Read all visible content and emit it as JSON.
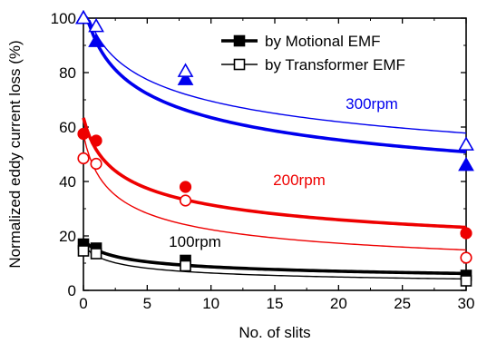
{
  "chart_data": {
    "type": "scatter",
    "xlabel": "No. of slits",
    "ylabel": "Normalized eddy current loss (%)",
    "xlim": [
      0,
      30
    ],
    "ylim": [
      0,
      100
    ],
    "x_ticks": [
      0,
      5,
      10,
      15,
      20,
      25,
      30
    ],
    "y_ticks": [
      0,
      20,
      40,
      60,
      80,
      100
    ],
    "grid": false,
    "legend_position": "top-right",
    "legend": [
      {
        "label": "by Motional EMF",
        "marker": "filled",
        "line": "thick"
      },
      {
        "label": "by Transformer EMF",
        "marker": "open",
        "line": "thin"
      }
    ],
    "annotations": [
      {
        "text": "300rpm",
        "color": "#0000ee",
        "group": 0
      },
      {
        "text": "200rpm",
        "color": "#ee0000",
        "group": 1
      },
      {
        "text": "100rpm",
        "color": "#000000",
        "group": 2
      }
    ],
    "groups": [
      {
        "color": "#0000ee",
        "marker": "triangle",
        "series": [
          {
            "name": "by Motional EMF",
            "filled": true,
            "x": [
              0,
              1,
              8,
              30
            ],
            "y": [
              100,
              91.5,
              77.5,
              46
            ]
          },
          {
            "name": "by Transformer EMF",
            "filled": false,
            "x": [
              0,
              1,
              8,
              30
            ],
            "y": [
              100,
              97,
              80.5,
              53.5
            ]
          }
        ]
      },
      {
        "color": "#ee0000",
        "marker": "circle",
        "series": [
          {
            "name": "by Motional EMF",
            "filled": true,
            "x": [
              0,
              1,
              8,
              30
            ],
            "y": [
              57.5,
              55,
              38,
              21
            ]
          },
          {
            "name": "by Transformer EMF",
            "filled": false,
            "x": [
              0,
              1,
              8,
              30
            ],
            "y": [
              48.5,
              46.5,
              33,
              12
            ]
          }
        ]
      },
      {
        "color": "#000000",
        "marker": "square",
        "series": [
          {
            "name": "by Motional EMF",
            "filled": true,
            "x": [
              0,
              1,
              8,
              30
            ],
            "y": [
              17,
              15.5,
              11,
              5.5
            ]
          },
          {
            "name": "by Transformer EMF",
            "filled": false,
            "x": [
              0,
              1,
              8,
              30
            ],
            "y": [
              14.5,
              13.5,
              9,
              3.5
            ]
          }
        ]
      }
    ]
  }
}
